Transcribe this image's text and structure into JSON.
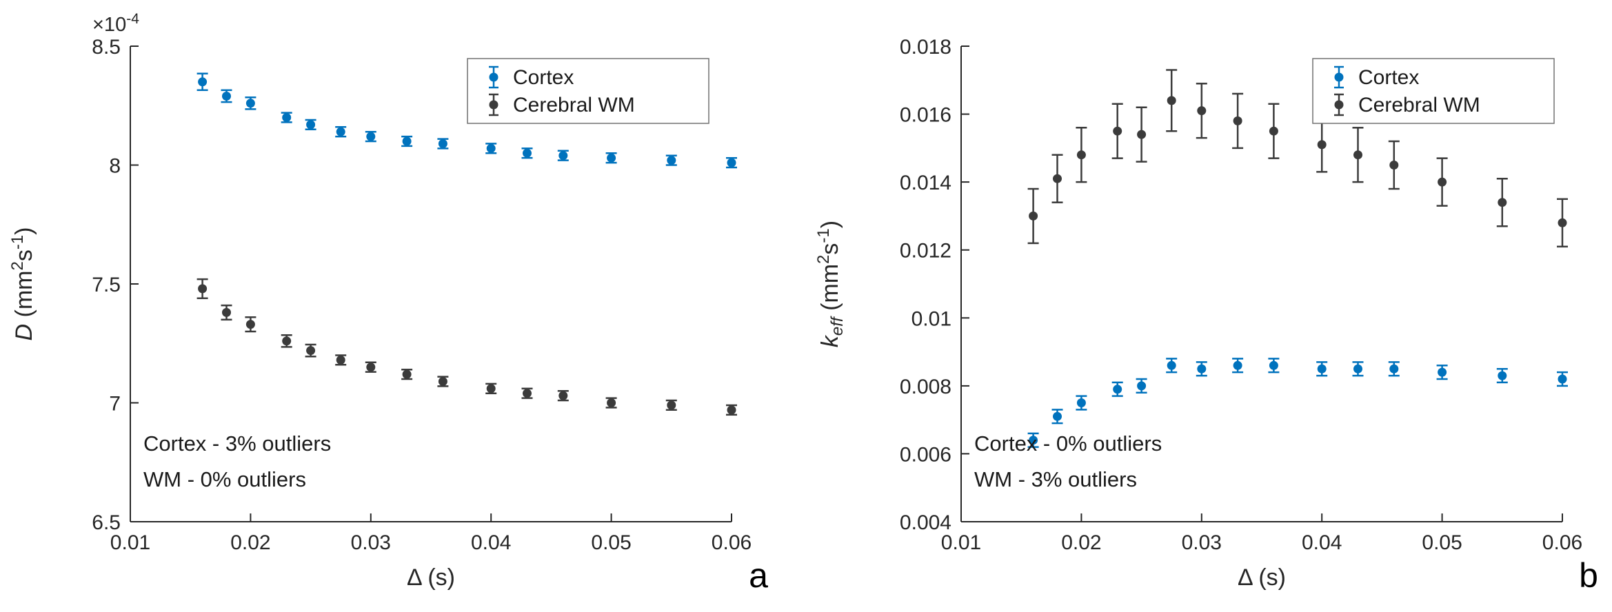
{
  "figure": {
    "background": "#ffffff",
    "axis_color": "#262626",
    "text_color": "#1a1a1a"
  },
  "chart_data": [
    {
      "type": "scatter",
      "panel_label": "a",
      "xlabel": "Δ (s)",
      "ylabel_parts": [
        {
          "text": "D",
          "italic": true
        },
        {
          "text": " (mm"
        },
        {
          "text": "2",
          "script": "sup"
        },
        {
          "text": "s"
        },
        {
          "text": "-1",
          "script": "sup"
        },
        {
          "text": ")"
        }
      ],
      "y_multiplier_parts": [
        {
          "text": "×10"
        },
        {
          "text": "-4",
          "script": "sup"
        }
      ],
      "xlim": [
        0.01,
        0.06
      ],
      "ylim": [
        6.5,
        8.5
      ],
      "xticks": [
        0.01,
        0.02,
        0.03,
        0.04,
        0.05,
        0.06
      ],
      "xtick_labels": [
        "0.01",
        "0.02",
        "0.03",
        "0.04",
        "0.05",
        "0.06"
      ],
      "yticks": [
        6.5,
        7,
        7.5,
        8,
        8.5
      ],
      "ytick_labels": [
        "6.5",
        "7",
        "7.5",
        "8",
        "8.5"
      ],
      "x": [
        0.016,
        0.018,
        0.02,
        0.023,
        0.025,
        0.0275,
        0.03,
        0.033,
        0.036,
        0.04,
        0.043,
        0.046,
        0.05,
        0.055,
        0.06
      ],
      "series": [
        {
          "name": "Cortex",
          "color": "#0072BD",
          "values": [
            8.35,
            8.29,
            8.26,
            8.2,
            8.17,
            8.14,
            8.12,
            8.1,
            8.09,
            8.07,
            8.05,
            8.04,
            8.03,
            8.02,
            8.01
          ],
          "errors": [
            0.035,
            0.025,
            0.025,
            0.02,
            0.02,
            0.02,
            0.02,
            0.02,
            0.02,
            0.02,
            0.02,
            0.02,
            0.02,
            0.02,
            0.02
          ]
        },
        {
          "name": "Cerebral WM",
          "color": "#3B3B3B",
          "values": [
            7.48,
            7.38,
            7.33,
            7.26,
            7.22,
            7.18,
            7.15,
            7.12,
            7.09,
            7.06,
            7.04,
            7.03,
            7.0,
            6.99,
            6.97
          ],
          "errors": [
            0.04,
            0.03,
            0.03,
            0.025,
            0.025,
            0.02,
            0.02,
            0.02,
            0.02,
            0.02,
            0.02,
            0.02,
            0.02,
            0.02,
            0.02
          ]
        }
      ],
      "legend": {
        "entries": [
          "Cortex",
          "Cerebral WM"
        ],
        "position": "top-right"
      },
      "annotation": [
        "Cortex - 3% outliers",
        "WM - 0% outliers"
      ]
    },
    {
      "type": "scatter",
      "panel_label": "b",
      "xlabel": "Δ (s)",
      "ylabel_parts": [
        {
          "text": "k",
          "italic": true
        },
        {
          "text": "eff",
          "italic": true,
          "script": "sub"
        },
        {
          "text": " (mm"
        },
        {
          "text": "2",
          "script": "sup"
        },
        {
          "text": "s"
        },
        {
          "text": "-1",
          "script": "sup"
        },
        {
          "text": ")"
        }
      ],
      "y_multiplier_parts": [],
      "xlim": [
        0.01,
        0.06
      ],
      "ylim": [
        0.004,
        0.018
      ],
      "xticks": [
        0.01,
        0.02,
        0.03,
        0.04,
        0.05,
        0.06
      ],
      "xtick_labels": [
        "0.01",
        "0.02",
        "0.03",
        "0.04",
        "0.05",
        "0.06"
      ],
      "yticks": [
        0.004,
        0.006,
        0.008,
        0.01,
        0.012,
        0.014,
        0.016,
        0.018
      ],
      "ytick_labels": [
        "0.004",
        "0.006",
        "0.008",
        "0.01",
        "0.012",
        "0.014",
        "0.016",
        "0.018"
      ],
      "x": [
        0.016,
        0.018,
        0.02,
        0.023,
        0.025,
        0.0275,
        0.03,
        0.033,
        0.036,
        0.04,
        0.043,
        0.046,
        0.05,
        0.055,
        0.06
      ],
      "series": [
        {
          "name": "Cortex",
          "color": "#0072BD",
          "values": [
            0.0064,
            0.0071,
            0.0075,
            0.0079,
            0.008,
            0.0086,
            0.0085,
            0.0086,
            0.0086,
            0.0085,
            0.0085,
            0.0085,
            0.0084,
            0.0083,
            0.0082
          ],
          "errors": [
            0.0002,
            0.0002,
            0.0002,
            0.0002,
            0.0002,
            0.0002,
            0.0002,
            0.0002,
            0.0002,
            0.0002,
            0.0002,
            0.0002,
            0.0002,
            0.0002,
            0.0002
          ]
        },
        {
          "name": "Cerebral WM",
          "color": "#3B3B3B",
          "values": [
            0.013,
            0.0141,
            0.0148,
            0.0155,
            0.0154,
            0.0164,
            0.0161,
            0.0158,
            0.0155,
            0.0151,
            0.0148,
            0.0145,
            0.014,
            0.0134,
            0.0128
          ],
          "errors": [
            0.0008,
            0.0007,
            0.0008,
            0.0008,
            0.0008,
            0.0009,
            0.0008,
            0.0008,
            0.0008,
            0.0008,
            0.0008,
            0.0007,
            0.0007,
            0.0007,
            0.0007
          ]
        }
      ],
      "legend": {
        "entries": [
          "Cortex",
          "Cerebral WM"
        ],
        "position": "top-right"
      },
      "annotation": [
        "Cortex - 0% outliers",
        "WM - 3% outliers"
      ]
    }
  ]
}
